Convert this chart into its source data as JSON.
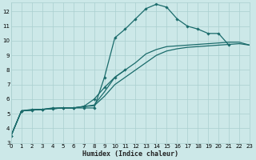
{
  "xlabel": "Humidex (Indice chaleur)",
  "bg_color": "#cce8e8",
  "grid_color": "#aacfcf",
  "line_color": "#1a6b6b",
  "xlim": [
    0,
    23
  ],
  "ylim": [
    3,
    12.6
  ],
  "xticks": [
    0,
    1,
    2,
    3,
    4,
    5,
    6,
    7,
    8,
    9,
    10,
    11,
    12,
    13,
    14,
    15,
    16,
    17,
    18,
    19,
    20,
    21,
    22,
    23
  ],
  "yticks": [
    3,
    4,
    5,
    6,
    7,
    8,
    9,
    10,
    11,
    12
  ],
  "series": [
    {
      "x": [
        0,
        1,
        2,
        3,
        4,
        5,
        6,
        7,
        8,
        9,
        10,
        11,
        12,
        13,
        14,
        15,
        16,
        17,
        18,
        19,
        20,
        21
      ],
      "y": [
        3.5,
        5.2,
        5.3,
        5.3,
        5.4,
        5.4,
        5.4,
        5.4,
        5.4,
        7.5,
        10.2,
        10.8,
        11.5,
        12.2,
        12.5,
        12.3,
        11.5,
        11.0,
        10.8,
        10.5,
        10.5,
        9.7
      ],
      "marker": true,
      "linewidth": 0.9
    },
    {
      "x": [
        0,
        1,
        2,
        3,
        4,
        5,
        6,
        7,
        8,
        9,
        10,
        11,
        12,
        13,
        14,
        15,
        16,
        17,
        18,
        19,
        20,
        21,
        22,
        23
      ],
      "y": [
        3.5,
        5.2,
        5.25,
        5.3,
        5.35,
        5.4,
        5.4,
        5.5,
        5.6,
        6.5,
        7.5,
        8.0,
        8.5,
        9.1,
        9.4,
        9.6,
        9.65,
        9.7,
        9.75,
        9.8,
        9.85,
        9.9,
        9.9,
        9.7
      ],
      "marker": false,
      "linewidth": 0.9
    },
    {
      "x": [
        0,
        1,
        2,
        3,
        4,
        5,
        6,
        7,
        8,
        9,
        10,
        11,
        12,
        13,
        14,
        15,
        16,
        17,
        18,
        19,
        20,
        21,
        22,
        23
      ],
      "y": [
        3.5,
        5.2,
        5.25,
        5.3,
        5.35,
        5.4,
        5.4,
        5.5,
        5.55,
        6.2,
        7.0,
        7.5,
        8.0,
        8.5,
        9.0,
        9.3,
        9.45,
        9.55,
        9.6,
        9.65,
        9.7,
        9.75,
        9.8,
        9.7
      ],
      "marker": false,
      "linewidth": 0.9
    },
    {
      "x": [
        0,
        1,
        2,
        3,
        4,
        5,
        6,
        7,
        8,
        9,
        10,
        11
      ],
      "y": [
        3.5,
        5.2,
        5.25,
        5.3,
        5.35,
        5.4,
        5.4,
        5.5,
        6.0,
        6.8,
        7.5,
        8.0
      ],
      "marker": true,
      "linewidth": 0.9
    }
  ]
}
